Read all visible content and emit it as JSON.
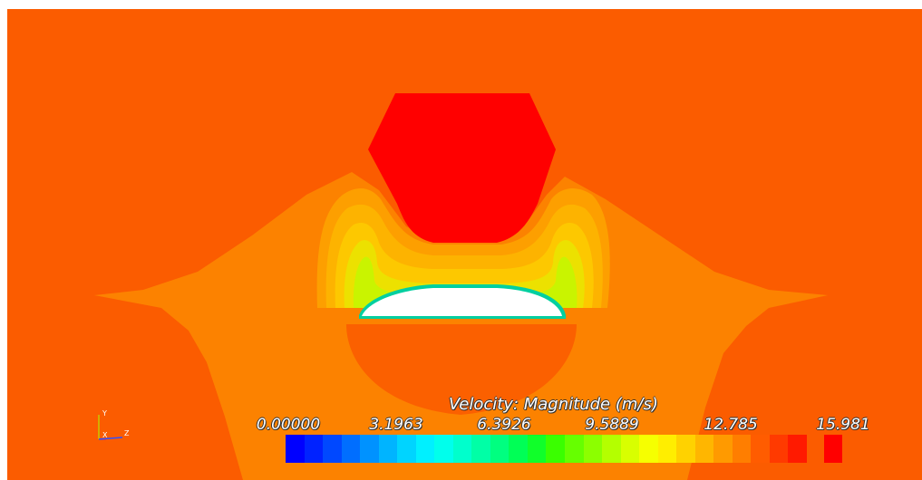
{
  "render": {
    "background": "#ffffff",
    "colors": {
      "far_field": "#fb5c00",
      "wake_outer": "#fc8200",
      "ring_1": "#fd9f00",
      "ring_2": "#fdb300",
      "ring_3": "#fdc800",
      "ring_4": "#ece100",
      "ring_5": "#c9f400",
      "stagnation_top": "#ff0000",
      "underside": "#fb6000",
      "body": "#ffffff",
      "body_edge": "#00cfa0"
    }
  },
  "colorbar": {
    "title": "Velocity: Magnitude (m/s)",
    "ticks": [
      "0.00000",
      "3.1963",
      "6.3926",
      "9.5889",
      "12.785",
      "15.981"
    ],
    "range": [
      0,
      15.981
    ],
    "segments": [
      "#0000ff",
      "#0022ff",
      "#0048ff",
      "#006eff",
      "#0092ff",
      "#00b4ff",
      "#00d4ff",
      "#00f0ff",
      "#00ffec",
      "#00ffcc",
      "#00ffa6",
      "#00ff80",
      "#00ff56",
      "#10ff2a",
      "#3aff00",
      "#66ff00",
      "#8cff00",
      "#b4ff00",
      "#d8ff00",
      "#f6ff00",
      "#ffee00",
      "#ffd200",
      "#ffb600",
      "#ff9a00",
      "#ff7e00",
      "#ff5c00",
      "#ff3a00",
      "#ff1a00"
    ],
    "above_range_color": "#ff0000"
  },
  "axes": {
    "y_label": "Y",
    "x_label": "X",
    "z_label": "Z",
    "y_color": "#c8c800",
    "x_color": "#ff3030",
    "z_color": "#3050ff"
  }
}
